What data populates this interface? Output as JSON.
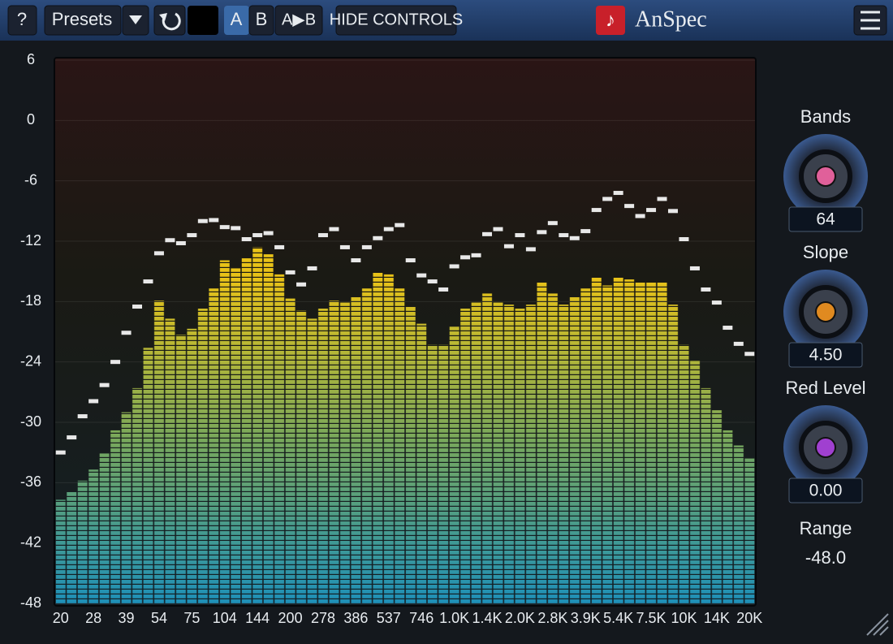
{
  "toolbar": {
    "help": "?",
    "presets": "Presets",
    "a": "A",
    "b": "B",
    "a_to_b": "A▶B",
    "hide_controls": "HIDE CONTROLS",
    "app_name": "AnSpec"
  },
  "controls": [
    {
      "label": "Bands",
      "value": "64",
      "color": "#e0609a"
    },
    {
      "label": "Slope",
      "value": "4.50",
      "color": "#e08a20"
    },
    {
      "label": "Red Level",
      "value": "0.00",
      "color": "#a040d0"
    }
  ],
  "range": {
    "label": "Range",
    "value": "-48.0"
  },
  "chart_data": {
    "type": "bar",
    "categories": [
      "20",
      null,
      null,
      "28",
      null,
      null,
      "39",
      null,
      null,
      "54",
      null,
      null,
      "75",
      null,
      null,
      "104",
      null,
      null,
      "144",
      null,
      null,
      "200",
      null,
      null,
      "278",
      null,
      null,
      "386",
      null,
      null,
      "537",
      null,
      null,
      "746",
      null,
      null,
      "1.0K",
      null,
      null,
      "1.4K",
      null,
      null,
      "2.0K",
      null,
      null,
      "2.8K",
      null,
      null,
      "3.9K",
      null,
      null,
      "5.4K",
      null,
      null,
      "7.5K",
      null,
      null,
      "10K",
      null,
      null,
      "14K",
      null,
      null,
      "20K"
    ],
    "values": [
      -37.7,
      -36.9,
      -35.8,
      -34.7,
      -33.1,
      -30.8,
      -29,
      -26.6,
      -22.6,
      -17.9,
      -19.7,
      -21.3,
      -20.7,
      -18.7,
      -16.7,
      -13.9,
      -14.7,
      -13.7,
      -12.6,
      -13.3,
      -15.3,
      -17.7,
      -18.9,
      -19.7,
      -18.7,
      -17.9,
      -18.1,
      -17.5,
      -16.7,
      -15.1,
      -15.3,
      -16.7,
      -18.5,
      -20.2,
      -22.3,
      -22.3,
      -20.5,
      -18.7,
      -18.1,
      -17.2,
      -18.1,
      -18.3,
      -18.7,
      -18.3,
      -16.1,
      -17.2,
      -18.3,
      -17.5,
      -16.7,
      -15.6,
      -16.4,
      -15.6,
      -15.8,
      -16.1,
      -16.1,
      -16.1,
      -18.3,
      -22.3,
      -23.9,
      -26.6,
      -28.8,
      -30.8,
      -32.3,
      -33.6
    ],
    "peak_values": [
      -33,
      -31.5,
      -29.4,
      -27.9,
      -26.3,
      -24,
      -21.1,
      -18.5,
      -16,
      -13.2,
      -11.9,
      -12.2,
      -11.4,
      -10,
      -9.9,
      -10.6,
      -10.7,
      -11.8,
      -11.4,
      -11.2,
      -12.6,
      -15.1,
      -16.3,
      -14.7,
      -11.4,
      -10.8,
      -12.6,
      -13.9,
      -12.6,
      -11.7,
      -10.8,
      -10.4,
      -13.9,
      -15.4,
      -16,
      -16.8,
      -14.5,
      -13.6,
      -13.4,
      -11.3,
      -10.8,
      -12.5,
      -11.4,
      -12.8,
      -11.1,
      -10.2,
      -11.4,
      -11.7,
      -11,
      -8.9,
      -7.8,
      -7.2,
      -8.5,
      -9.5,
      -8.9,
      -7.8,
      -9,
      -11.8,
      -14.7,
      -16.8,
      -18.1,
      -20.6,
      -22.2,
      -23.2
    ],
    "gradient": [
      "#e8c218",
      "#78a85c",
      "#1e90b8"
    ],
    "peak_color": "#e8e8e8",
    "ylim": [
      -48,
      6
    ],
    "yticks": [
      6,
      0,
      -6,
      -12,
      -18,
      -24,
      -30,
      -36,
      -42,
      -48
    ],
    "grid": true
  }
}
